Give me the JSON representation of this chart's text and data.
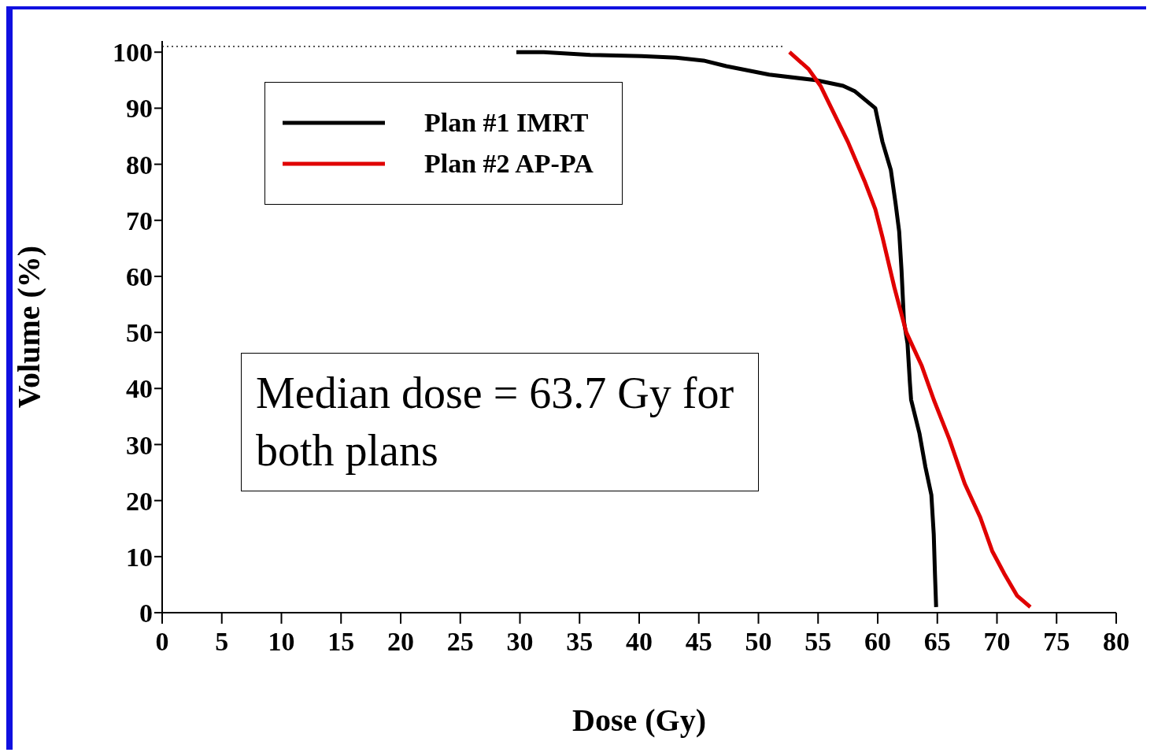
{
  "chart_data": {
    "type": "line",
    "xlabel": "Dose (Gy)",
    "ylabel": "Volume (%)",
    "xlim": [
      0,
      80
    ],
    "xticks": [
      0,
      5,
      10,
      15,
      20,
      25,
      30,
      35,
      40,
      45,
      50,
      55,
      60,
      65,
      70,
      75,
      80
    ],
    "ylim": [
      0,
      102
    ],
    "grid": false,
    "yticks": [
      0,
      10,
      20,
      30,
      40,
      50,
      60,
      70,
      80,
      90,
      100
    ],
    "legend": "top left",
    "annotations": [
      "Median dose = 63.7 Gy for both plans"
    ],
    "series": [
      {
        "name": "Plan #1 IMRT",
        "color": "#000000",
        "x": [
          29.7,
          32,
          35.9,
          40.2,
          43.1,
          45.4,
          47.3,
          50.9,
          54.8,
          57.1,
          58.1,
          59.8,
          60,
          60.4,
          61.1,
          61.5,
          61.8,
          62,
          62.2,
          62.5,
          62.7,
          62.8,
          63.5,
          64,
          64.5,
          64.7,
          64.8,
          64.9
        ],
        "values": [
          100,
          100,
          99.5,
          99.3,
          99,
          98.5,
          97.5,
          96,
          95,
          94,
          93,
          90,
          88,
          84,
          79,
          73,
          68,
          61,
          52,
          48,
          41,
          38,
          32,
          26,
          21,
          14,
          7,
          1
        ]
      },
      {
        "name": "Plan #2 AP-PA",
        "color": "#e00000",
        "x": [
          52.6,
          54.2,
          55.2,
          57.5,
          58.9,
          59.8,
          60.4,
          61.4,
          62.4,
          63.7,
          64.7,
          66,
          67.3,
          68.6,
          69.6,
          70.6,
          71.7,
          72.8
        ],
        "values": [
          100,
          97,
          94,
          84,
          77,
          72,
          67,
          58,
          50,
          44,
          38,
          31,
          23,
          17,
          11,
          7,
          3,
          1
        ]
      },
      {
        "color": "#555555",
        "line_style": "dotted",
        "x": [
          0,
          52.2
        ],
        "values": [
          101,
          101
        ]
      }
    ]
  }
}
